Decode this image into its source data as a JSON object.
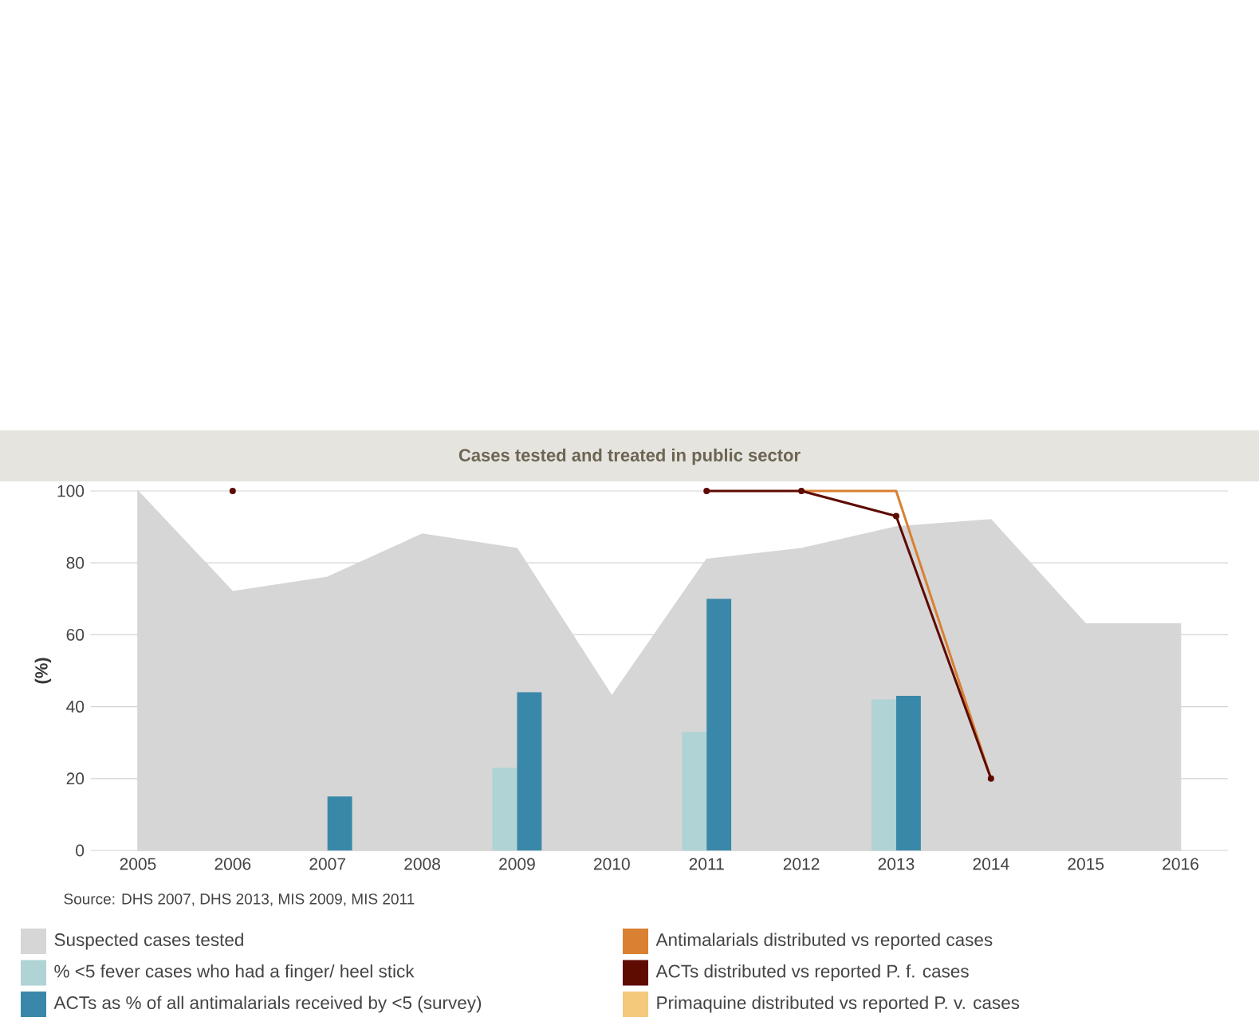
{
  "chart_data": {
    "type": "bar",
    "title": "Cases tested and treated in public sector",
    "ylabel": "(%)",
    "categories": [
      "2005",
      "2006",
      "2007",
      "2008",
      "2009",
      "2010",
      "2011",
      "2012",
      "2013",
      "2014",
      "2015",
      "2016"
    ],
    "series": [
      {
        "name": "Suspected cases tested",
        "type": "area",
        "color": "#d6d6d6",
        "values": [
          100,
          72,
          76,
          88,
          84,
          43,
          81,
          84,
          90,
          92,
          63,
          63
        ]
      },
      {
        "name": "% <5 fever cases who had a finger/ heel stick",
        "color": "#b0d3d5",
        "values": [
          null,
          null,
          null,
          null,
          23,
          null,
          33,
          null,
          42,
          null,
          null,
          null
        ]
      },
      {
        "name": "ACTs as % of all antimalarials received by <5 (survey)",
        "color": "#3a88a9",
        "values": [
          null,
          null,
          15,
          null,
          44,
          null,
          70,
          null,
          43,
          null,
          null,
          null
        ]
      },
      {
        "name": "Antimalarials distributed vs reported cases",
        "type": "line",
        "color": "#d98032",
        "values": [
          null,
          null,
          null,
          null,
          null,
          null,
          null,
          100,
          100,
          20,
          null,
          null
        ]
      },
      {
        "name": "ACTs distributed vs reported P. f. cases",
        "type": "line",
        "marker": "circle",
        "color": "#5e0b02",
        "values": [
          null,
          100,
          null,
          null,
          null,
          null,
          100,
          100,
          93,
          20,
          null,
          null
        ]
      },
      {
        "name": "Primaquine distributed vs reported P. v. cases",
        "type": "line",
        "color": "#f5c97c",
        "values": [
          null,
          null,
          null,
          null,
          null,
          null,
          null,
          null,
          null,
          null,
          null,
          null
        ]
      }
    ],
    "ylim": [
      0,
      100
    ],
    "yticks": [
      0,
      20,
      40,
      60,
      80,
      100
    ],
    "grid": "y",
    "legend": "bottom",
    "annotations": [
      "Source: DHS 2007, DHS 2013, MIS 2009, MIS 2011"
    ]
  }
}
